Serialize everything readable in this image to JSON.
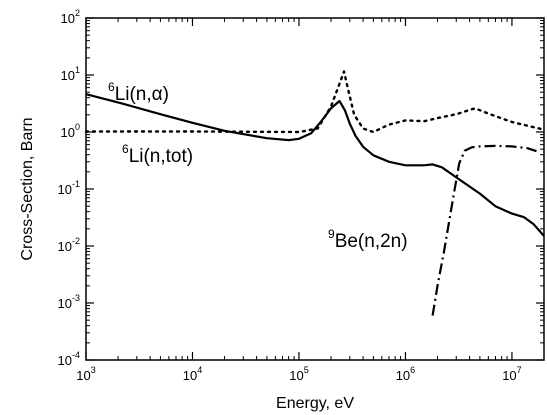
{
  "chart_data": {
    "type": "line",
    "title": "",
    "xlabel": "Energy, eV",
    "ylabel": "Cross-Section, Barn",
    "x_scale": "log",
    "y_scale": "log",
    "xlim": [
      1000,
      20000000
    ],
    "ylim": [
      0.0001,
      100
    ],
    "grid": false,
    "legend": "none",
    "x_ticks": [
      {
        "base": "10",
        "exp": "3",
        "value": 1000
      },
      {
        "base": "10",
        "exp": "4",
        "value": 10000
      },
      {
        "base": "10",
        "exp": "5",
        "value": 100000
      },
      {
        "base": "10",
        "exp": "6",
        "value": 1000000
      },
      {
        "base": "10",
        "exp": "7",
        "value": 10000000
      }
    ],
    "y_ticks": [
      {
        "base": "10",
        "exp": "-4",
        "value": 0.0001
      },
      {
        "base": "10",
        "exp": "-3",
        "value": 0.001
      },
      {
        "base": "10",
        "exp": "-2",
        "value": 0.01
      },
      {
        "base": "10",
        "exp": "-1",
        "value": 0.1
      },
      {
        "base": "10",
        "exp": "0",
        "value": 1
      },
      {
        "base": "10",
        "exp": "1",
        "value": 10
      },
      {
        "base": "10",
        "exp": "2",
        "value": 100
      }
    ],
    "series": [
      {
        "style": "solid",
        "label": {
          "sup": "6",
          "text": "Li(n,α)"
        },
        "points": [
          [
            1000,
            4.6
          ],
          [
            2000,
            3.3
          ],
          [
            5000,
            2.05
          ],
          [
            10000,
            1.45
          ],
          [
            20000,
            1.05
          ],
          [
            50000,
            0.78
          ],
          [
            80000,
            0.72
          ],
          [
            100000,
            0.76
          ],
          [
            130000,
            0.95
          ],
          [
            160000,
            1.5
          ],
          [
            200000,
            2.6
          ],
          [
            240000,
            3.5
          ],
          [
            270000,
            2.4
          ],
          [
            300000,
            1.4
          ],
          [
            340000,
            0.85
          ],
          [
            400000,
            0.55
          ],
          [
            500000,
            0.39
          ],
          [
            700000,
            0.3
          ],
          [
            1000000,
            0.26
          ],
          [
            1500000,
            0.26
          ],
          [
            1800000,
            0.27
          ],
          [
            2200000,
            0.24
          ],
          [
            3000000,
            0.16
          ],
          [
            5000000,
            0.083
          ],
          [
            7000000,
            0.05
          ],
          [
            10000000,
            0.037
          ],
          [
            13000000,
            0.032
          ],
          [
            16000000,
            0.024
          ],
          [
            20000000,
            0.015
          ]
        ]
      },
      {
        "style": "dotted",
        "label": {
          "sup": "6",
          "text": "Li(n,tot)"
        },
        "points": [
          [
            1000,
            1.02
          ],
          [
            10000,
            1.02
          ],
          [
            100000,
            1.0
          ],
          [
            150000,
            1.15
          ],
          [
            200000,
            2.8
          ],
          [
            240000,
            7.0
          ],
          [
            265000,
            11.5
          ],
          [
            290000,
            5.5
          ],
          [
            330000,
            2.0
          ],
          [
            400000,
            1.15
          ],
          [
            500000,
            1.0
          ],
          [
            700000,
            1.35
          ],
          [
            1000000,
            1.6
          ],
          [
            1500000,
            1.55
          ],
          [
            2000000,
            1.75
          ],
          [
            3000000,
            2.05
          ],
          [
            4500000,
            2.6
          ],
          [
            6000000,
            2.1
          ],
          [
            10000000,
            1.5
          ],
          [
            15000000,
            1.25
          ],
          [
            20000000,
            1.1
          ]
        ]
      },
      {
        "style": "dash-dot",
        "label": {
          "sup": "9",
          "text": "Be(n,2n)"
        },
        "points": [
          [
            1800000,
            0.0006
          ],
          [
            2000000,
            0.002
          ],
          [
            2300000,
            0.008
          ],
          [
            2600000,
            0.03
          ],
          [
            2900000,
            0.1
          ],
          [
            3200000,
            0.28
          ],
          [
            3600000,
            0.47
          ],
          [
            4200000,
            0.54
          ],
          [
            5000000,
            0.56
          ],
          [
            7000000,
            0.57
          ],
          [
            10000000,
            0.56
          ],
          [
            14000000,
            0.52
          ],
          [
            17000000,
            0.46
          ]
        ]
      }
    ]
  }
}
